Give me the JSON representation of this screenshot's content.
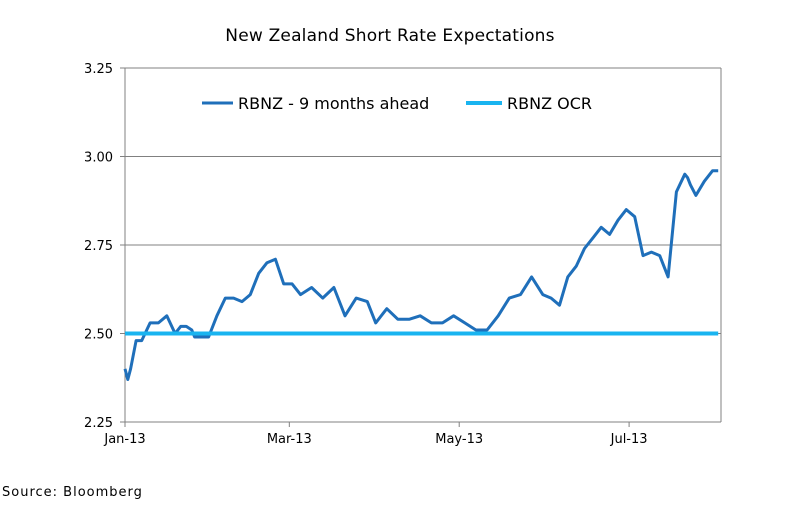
{
  "chart_data": {
    "type": "line",
    "title": "New Zealand Short Rate Expectations",
    "xlabel": "",
    "ylabel": "",
    "ylim": [
      2.25,
      3.25
    ],
    "yticks": [
      "2.25",
      "2.50",
      "2.75",
      "3.00",
      "3.25"
    ],
    "xticks": [
      "Jan-13",
      "Mar-13",
      "May-13",
      "Jul-13"
    ],
    "grid": "horizontal",
    "legend_position": "top",
    "series": [
      {
        "name": "RBNZ - 9 months ahead",
        "color": "#1f6fba",
        "x": [
          "2013-01-02",
          "2013-01-03",
          "2013-01-04",
          "2013-01-06",
          "2013-01-08",
          "2013-01-11",
          "2013-01-14",
          "2013-01-17",
          "2013-01-20",
          "2013-01-22",
          "2013-01-24",
          "2013-01-26",
          "2013-01-27",
          "2013-01-28",
          "2013-02-01",
          "2013-02-04",
          "2013-02-07",
          "2013-02-10",
          "2013-02-13",
          "2013-02-16",
          "2013-02-19",
          "2013-02-22",
          "2013-02-25",
          "2013-02-28",
          "2013-03-03",
          "2013-03-06",
          "2013-03-10",
          "2013-03-14",
          "2013-03-18",
          "2013-03-22",
          "2013-03-26",
          "2013-03-30",
          "2013-04-02",
          "2013-04-06",
          "2013-04-10",
          "2013-04-14",
          "2013-04-18",
          "2013-04-22",
          "2013-04-26",
          "2013-04-30",
          "2013-05-04",
          "2013-05-08",
          "2013-05-12",
          "2013-05-16",
          "2013-05-20",
          "2013-05-24",
          "2013-05-28",
          "2013-06-01",
          "2013-06-04",
          "2013-06-07",
          "2013-06-10",
          "2013-06-13",
          "2013-06-16",
          "2013-06-19",
          "2013-06-22",
          "2013-06-25",
          "2013-06-28",
          "2013-07-01",
          "2013-07-04",
          "2013-07-07",
          "2013-07-10",
          "2013-07-13",
          "2013-07-16",
          "2013-07-19",
          "2013-07-22",
          "2013-07-23",
          "2013-07-24",
          "2013-07-26",
          "2013-07-29",
          "2013-08-01",
          "2013-08-03"
        ],
        "values": [
          2.4,
          2.37,
          2.4,
          2.48,
          2.48,
          2.53,
          2.53,
          2.55,
          2.5,
          2.52,
          2.52,
          2.51,
          2.49,
          2.49,
          2.49,
          2.55,
          2.6,
          2.6,
          2.59,
          2.61,
          2.67,
          2.7,
          2.71,
          2.64,
          2.64,
          2.61,
          2.63,
          2.6,
          2.63,
          2.55,
          2.6,
          2.59,
          2.53,
          2.57,
          2.54,
          2.54,
          2.55,
          2.53,
          2.53,
          2.55,
          2.53,
          2.51,
          2.51,
          2.55,
          2.6,
          2.61,
          2.66,
          2.61,
          2.6,
          2.58,
          2.66,
          2.69,
          2.74,
          2.77,
          2.8,
          2.78,
          2.82,
          2.85,
          2.83,
          2.72,
          2.73,
          2.72,
          2.66,
          2.9,
          2.95,
          2.94,
          2.92,
          2.89,
          2.93,
          2.96,
          2.96
        ]
      },
      {
        "name": "RBNZ OCR",
        "color": "#19b4f0",
        "x": [
          "2013-01-02",
          "2013-08-03"
        ],
        "values": [
          2.5,
          2.5
        ]
      }
    ],
    "source": "Source: Bloomberg"
  }
}
